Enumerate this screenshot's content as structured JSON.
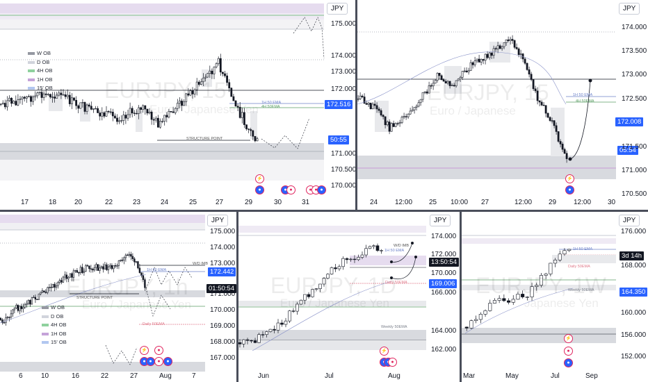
{
  "panels": {
    "p1": {
      "currency": "JPY",
      "watermark_symbol": "EURJPY, 15",
      "watermark_name": "Euro / Japanese Yen",
      "y_labels": [
        "175.000",
        "174.000",
        "173.000",
        "172.000",
        "171.500",
        "171.000",
        "170.500",
        "170.000"
      ],
      "x_labels": [
        "17",
        "18",
        "20",
        "22",
        "23",
        "24",
        "25",
        "27",
        "29",
        "30",
        "31"
      ],
      "price_tag": "172.516",
      "timer_tag": "50:55",
      "legend": [
        {
          "label": "W OB",
          "color": "#9598a1"
        },
        {
          "label": "D OB",
          "color": "#d1d4dc"
        },
        {
          "label": "4H OB",
          "color": "#8fd19e"
        },
        {
          "label": "1H OB",
          "color": "#c5a3d9"
        },
        {
          "label": "15' OB",
          "color": "#b2c7f0"
        }
      ],
      "structure_label": "STRUCTURE POINT",
      "ema_1h": "1H 50 EMA",
      "ema_4h": "4H 50EMA"
    },
    "p2": {
      "currency": "JPY",
      "watermark_symbol": "EURJPY, 15",
      "watermark_name": "Euro / Japanese",
      "y_labels": [
        "174.000",
        "173.500",
        "173.000",
        "172.500",
        "172.008",
        "171.500",
        "171.000",
        "170.500"
      ],
      "x_labels": [
        "24",
        "12:00",
        "25",
        "10:00",
        "27",
        "12:00",
        "29",
        "12:00",
        "30"
      ],
      "price_tag": "172.008",
      "timer_tag": "05:54",
      "ema_1h": "1H 50 EMA",
      "ema_4h": "4H 50EMA"
    },
    "p3": {
      "currency": "JPY",
      "watermark_symbol": "EURJPY, 1h",
      "watermark_name": "Euro / Japanese Yen",
      "y_labels": [
        "175.000",
        "174.000",
        "173.000",
        "172.000",
        "171.000",
        "170.000",
        "169.000",
        "168.000",
        "167.000"
      ],
      "x_labels": [
        "6",
        "10",
        "16",
        "22",
        "27",
        "Aug",
        "7"
      ],
      "price_tag": "172.442",
      "timer_tag": "01:50:54",
      "legend": [
        {
          "label": "W OB",
          "color": "#9598a1"
        },
        {
          "label": "D OB",
          "color": "#d1d4dc"
        },
        {
          "label": "4H OB",
          "color": "#8fd19e"
        },
        {
          "label": "1H OB",
          "color": "#c5a3d9"
        },
        {
          "label": "15' OB",
          "color": "#b2c7f0"
        }
      ],
      "structure_label": "STRUCTURE POINT",
      "wd_label": "W/D IMB",
      "ema_label": "1H 50 EMA",
      "daily_label": "Daily 50EMA"
    },
    "p4": {
      "currency": "JPY",
      "watermark_symbol": "EURJPY, 1D",
      "watermark_name": "Euro / Japanese Yen",
      "y_labels": [
        "174.000",
        "172.000",
        "170.000",
        "168.000",
        "166.000",
        "164.000",
        "162.000"
      ],
      "x_labels": [
        "Jun",
        "Jul",
        "Aug"
      ],
      "price_tag": "169.006",
      "timer_tag": "13:50:54",
      "wd_label": "W/D IMB",
      "ema_label": "1H 50 EMA",
      "daily_label": "Daily 50EMA",
      "weekly_label": "Weekly 50EMA"
    },
    "p5": {
      "currency": "JPY",
      "watermark_symbol": "EURJPY, 1W",
      "watermark_name": "Japanese Yen",
      "y_labels": [
        "176.000",
        "172.000",
        "168.000",
        "164.350",
        "160.000",
        "156.000",
        "152.000"
      ],
      "x_labels": [
        "Mar",
        "May",
        "Jul",
        "Sep"
      ],
      "price_tag": "164.350",
      "timer_tag": "3d 14h",
      "ema_label": "1H 50 EMA",
      "daily_label": "Daily 50EMA",
      "weekly_label": "Weekly 50EMA"
    }
  },
  "colors": {
    "accent": "#2962ff",
    "bear": "#131722",
    "bull": "#ffffff",
    "ob_purple": "#e3d9ee",
    "ob_grey": "#d8dadf"
  }
}
